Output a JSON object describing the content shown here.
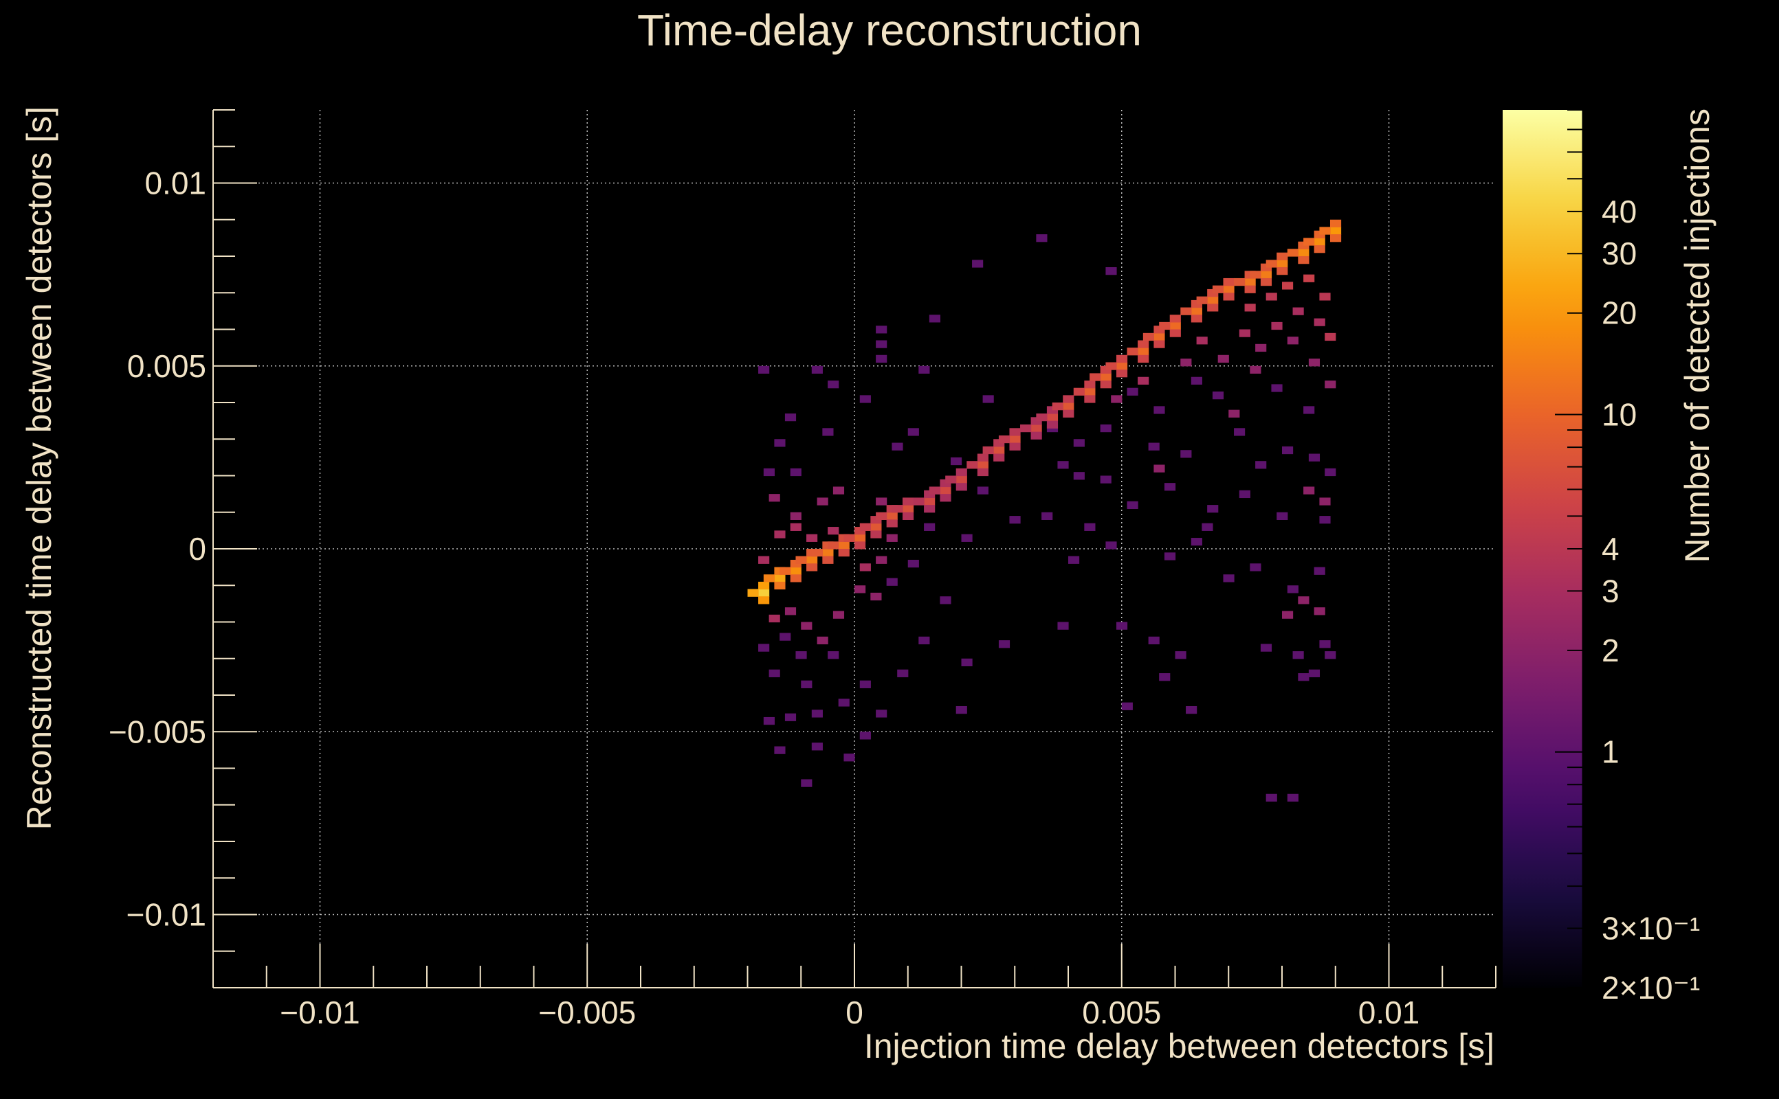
{
  "chart_data": {
    "type": "heatmap",
    "title": "Time-delay reconstruction",
    "xlabel": "Injection time delay between detectors [s]",
    "ylabel": "Reconstructed time delay between detectors [s]",
    "zlabel": "Number of detected injections",
    "xlim": [
      -0.012,
      0.012
    ],
    "ylim": [
      -0.012,
      0.012
    ],
    "zlim": [
      0.2,
      80
    ],
    "zscale": "log",
    "grid": true,
    "x_ticks": [
      {
        "value": -0.01,
        "label": "−0.01"
      },
      {
        "value": -0.005,
        "label": "−0.005"
      },
      {
        "value": 0,
        "label": "0"
      },
      {
        "value": 0.005,
        "label": "0.005"
      },
      {
        "value": 0.01,
        "label": "0.01"
      }
    ],
    "y_ticks": [
      {
        "value": 0.01,
        "label": "0.01"
      },
      {
        "value": 0.005,
        "label": "0.005"
      },
      {
        "value": 0,
        "label": "0"
      },
      {
        "value": -0.005,
        "label": "−0.005"
      },
      {
        "value": -0.01,
        "label": "−0.01"
      }
    ],
    "z_ticks": [
      {
        "value": 40,
        "label": "40"
      },
      {
        "value": 30,
        "label": "30"
      },
      {
        "value": 20,
        "label": "20"
      },
      {
        "value": 10,
        "label": "10"
      },
      {
        "value": 4,
        "label": "4"
      },
      {
        "value": 3,
        "label": "3"
      },
      {
        "value": 2,
        "label": "2"
      },
      {
        "value": 1,
        "label": "1"
      },
      {
        "value": 0.3,
        "label": "3×10⁻¹"
      },
      {
        "value": 0.2,
        "label": "2×10⁻¹"
      }
    ],
    "palette": [
      "#000004",
      "#1b0c41",
      "#4a0c6b",
      "#781c6d",
      "#a52c60",
      "#cf4446",
      "#ed6925",
      "#fb9b06",
      "#f7d13d",
      "#fcffa4"
    ],
    "ridge": [
      [
        -0.0017,
        -0.0012,
        40
      ],
      [
        -0.0014,
        -0.0008,
        25
      ],
      [
        -0.0011,
        -0.0006,
        18
      ],
      [
        -0.0008,
        -0.0003,
        15
      ],
      [
        -0.0005,
        -0.0001,
        14
      ],
      [
        -0.0002,
        0.0001,
        12
      ],
      [
        0.0001,
        0.0003,
        10
      ],
      [
        0.0004,
        0.0006,
        8
      ],
      [
        0.0007,
        0.0009,
        8
      ],
      [
        0.001,
        0.0011,
        7
      ],
      [
        0.0014,
        0.0013,
        6
      ],
      [
        0.0017,
        0.0016,
        6
      ],
      [
        0.002,
        0.0019,
        6
      ],
      [
        0.0024,
        0.0023,
        7
      ],
      [
        0.0027,
        0.0027,
        7
      ],
      [
        0.003,
        0.003,
        7
      ],
      [
        0.0034,
        0.0033,
        6
      ],
      [
        0.0037,
        0.0036,
        6
      ],
      [
        0.004,
        0.0039,
        8
      ],
      [
        0.0044,
        0.0043,
        9
      ],
      [
        0.0047,
        0.0047,
        10
      ],
      [
        0.005,
        0.005,
        10
      ],
      [
        0.0054,
        0.0054,
        11
      ],
      [
        0.0057,
        0.0058,
        11
      ],
      [
        0.006,
        0.0061,
        11
      ],
      [
        0.0064,
        0.0065,
        12
      ],
      [
        0.0067,
        0.0068,
        12
      ],
      [
        0.007,
        0.0071,
        12
      ],
      [
        0.0074,
        0.0073,
        13
      ],
      [
        0.0077,
        0.0075,
        14
      ],
      [
        0.008,
        0.0078,
        15
      ],
      [
        0.0084,
        0.0081,
        17
      ],
      [
        0.0087,
        0.0084,
        18
      ],
      [
        0.009,
        0.0087,
        20
      ]
    ],
    "scatter": [
      [
        0.0035,
        0.0085,
        1
      ],
      [
        0.0023,
        0.0078,
        1
      ],
      [
        0.0048,
        0.0076,
        1
      ],
      [
        0.0015,
        0.0063,
        1
      ],
      [
        0.0005,
        0.006,
        1
      ],
      [
        0.0005,
        0.0056,
        1
      ],
      [
        0.0005,
        0.0052,
        1
      ],
      [
        0.0013,
        0.0049,
        1
      ],
      [
        -0.0017,
        0.0049,
        1
      ],
      [
        -0.0007,
        0.0049,
        1
      ],
      [
        -0.0004,
        0.0045,
        1
      ],
      [
        0.0002,
        0.0041,
        1
      ],
      [
        0.0025,
        0.0041,
        1
      ],
      [
        -0.0012,
        0.0036,
        1
      ],
      [
        -0.0005,
        0.0032,
        1
      ],
      [
        0.0011,
        0.0032,
        1
      ],
      [
        -0.0014,
        0.0029,
        1
      ],
      [
        0.0008,
        0.0028,
        1
      ],
      [
        0.0019,
        0.0024,
        1
      ],
      [
        -0.0016,
        0.0021,
        1
      ],
      [
        0.0015,
        0.0016,
        1
      ],
      [
        0.0039,
        0.0023,
        1
      ],
      [
        0.0042,
        0.002,
        1
      ],
      [
        0.0056,
        0.0028,
        1
      ],
      [
        0.0062,
        0.0026,
        1
      ],
      [
        0.0076,
        0.0023,
        1
      ],
      [
        0.0081,
        0.0027,
        1
      ],
      [
        0.0086,
        0.0025,
        1
      ],
      [
        0.0089,
        0.0021,
        1
      ],
      [
        0.0052,
        0.0012,
        1
      ],
      [
        0.0067,
        0.0011,
        1
      ],
      [
        0.0073,
        0.0015,
        1
      ],
      [
        0.008,
        0.0009,
        1
      ],
      [
        0.0088,
        0.0008,
        1
      ],
      [
        0.0041,
        -0.0003,
        1
      ],
      [
        0.0048,
        0.0001,
        1
      ],
      [
        0.0059,
        -0.0002,
        1
      ],
      [
        0.0064,
        0.0002,
        1
      ],
      [
        0.007,
        -0.0008,
        1
      ],
      [
        0.0082,
        -0.0011,
        1
      ],
      [
        0.0087,
        -0.0006,
        1
      ],
      [
        0.0039,
        -0.0021,
        1
      ],
      [
        0.005,
        -0.0021,
        1
      ],
      [
        0.0056,
        -0.0025,
        1
      ],
      [
        0.0061,
        -0.0029,
        1
      ],
      [
        0.0077,
        -0.0027,
        1
      ],
      [
        0.0083,
        -0.0029,
        1
      ],
      [
        0.0086,
        -0.0034,
        1
      ],
      [
        0.0089,
        -0.0029,
        1
      ],
      [
        0.0028,
        -0.0026,
        1
      ],
      [
        0.0021,
        -0.0031,
        1
      ],
      [
        0.0013,
        -0.0025,
        1
      ],
      [
        0.0009,
        -0.0034,
        1
      ],
      [
        0.0002,
        -0.0037,
        1
      ],
      [
        -0.0004,
        -0.0029,
        1
      ],
      [
        -0.0009,
        -0.0037,
        1
      ],
      [
        -0.0015,
        -0.0034,
        1
      ],
      [
        -0.0016,
        -0.0047,
        1
      ],
      [
        -0.0012,
        -0.0046,
        1
      ],
      [
        -0.0007,
        -0.0045,
        1
      ],
      [
        -0.0002,
        -0.0042,
        1
      ],
      [
        0.0005,
        -0.0045,
        1
      ],
      [
        0.002,
        -0.0044,
        1
      ],
      [
        -0.0014,
        -0.0055,
        1
      ],
      [
        -0.0007,
        -0.0054,
        1
      ],
      [
        0.0002,
        -0.0051,
        1
      ],
      [
        -0.0001,
        -0.0057,
        1
      ],
      [
        -0.0009,
        -0.0064,
        1
      ],
      [
        0.0051,
        -0.0043,
        1
      ],
      [
        0.0058,
        -0.0035,
        1
      ],
      [
        0.0063,
        -0.0044,
        1
      ],
      [
        0.0078,
        -0.0068,
        1
      ],
      [
        0.0082,
        -0.0068,
        1
      ],
      [
        0.0084,
        -0.0035,
        1
      ],
      [
        0.0088,
        -0.0026,
        1
      ],
      [
        0.0075,
        -0.0005,
        1
      ],
      [
        0.0066,
        0.0006,
        1
      ],
      [
        0.0059,
        0.0017,
        1
      ],
      [
        0.0047,
        0.0019,
        1
      ],
      [
        0.0044,
        0.0006,
        1
      ],
      [
        0.0036,
        0.0009,
        1
      ],
      [
        0.003,
        0.0008,
        1
      ],
      [
        0.0024,
        0.0016,
        1
      ],
      [
        0.0021,
        0.0003,
        1
      ],
      [
        0.0014,
        0.0006,
        1
      ],
      [
        0.0011,
        -0.0004,
        1
      ],
      [
        0.0007,
        -0.0009,
        1
      ],
      [
        0.0017,
        -0.0014,
        1
      ],
      [
        -0.0011,
        0.0021,
        1
      ],
      [
        -0.0017,
        -0.0027,
        1
      ],
      [
        -0.0013,
        -0.0024,
        1
      ],
      [
        -0.001,
        -0.0029,
        1
      ],
      [
        0.0079,
        0.0044,
        1
      ],
      [
        0.0085,
        0.0038,
        1
      ],
      [
        0.0072,
        0.0032,
        1
      ],
      [
        0.0068,
        0.0042,
        1
      ],
      [
        0.0064,
        0.0046,
        1
      ],
      [
        0.0057,
        0.0038,
        1
      ],
      [
        0.0052,
        0.0043,
        1
      ],
      [
        0.0047,
        0.0033,
        1
      ],
      [
        0.0042,
        0.0029,
        1
      ],
      [
        0.0037,
        0.0033,
        1
      ],
      [
        0.0082,
        0.0057,
        2
      ],
      [
        0.0086,
        0.0051,
        2
      ],
      [
        0.0089,
        0.0045,
        2
      ],
      [
        0.0076,
        0.0055,
        2
      ],
      [
        0.0088,
        0.0013,
        2
      ],
      [
        0.0085,
        0.0016,
        2
      ],
      [
        0.0087,
        -0.0017,
        2
      ],
      [
        0.0084,
        -0.0014,
        2
      ],
      [
        0.0081,
        -0.0018,
        2
      ],
      [
        -0.0015,
        0.0014,
        2
      ],
      [
        -0.0011,
        0.0009,
        2
      ],
      [
        -0.0006,
        0.0013,
        2
      ],
      [
        -0.0003,
        0.0016,
        2
      ],
      [
        0.0005,
        0.0013,
        2
      ],
      [
        -0.0015,
        -0.0019,
        3
      ],
      [
        -0.0012,
        -0.0017,
        2
      ],
      [
        -0.0009,
        -0.0021,
        2
      ],
      [
        -0.0006,
        -0.0025,
        2
      ],
      [
        -0.0003,
        -0.0018,
        2
      ],
      [
        0.0001,
        -0.0011,
        2
      ],
      [
        0.0004,
        -0.0013,
        2
      ],
      [
        -0.0017,
        -0.0003,
        3
      ],
      [
        -0.0014,
        0.0004,
        3
      ],
      [
        -0.0011,
        0.0006,
        3
      ],
      [
        -0.0008,
        0.0003,
        3
      ],
      [
        -0.0004,
        0.0005,
        3
      ],
      [
        0.0007,
        0.0003,
        2
      ],
      [
        0.0002,
        -0.0005,
        3
      ],
      [
        0.0005,
        -0.0003,
        2
      ],
      [
        0.0057,
        0.0022,
        2
      ],
      [
        0.0071,
        0.0037,
        2
      ],
      [
        0.0075,
        0.0049,
        2
      ],
      [
        0.0079,
        0.0061,
        3
      ],
      [
        0.0083,
        0.0065,
        3
      ],
      [
        0.0087,
        0.0062,
        3
      ],
      [
        0.0089,
        0.0058,
        4
      ],
      [
        0.0073,
        0.0059,
        3
      ],
      [
        0.0069,
        0.0052,
        2
      ],
      [
        0.0062,
        0.0051,
        2
      ],
      [
        0.0081,
        0.0072,
        5
      ],
      [
        0.0085,
        0.0074,
        5
      ],
      [
        0.0088,
        0.0069,
        4
      ],
      [
        0.0074,
        0.0066,
        4
      ],
      [
        0.0078,
        0.0069,
        4
      ],
      [
        0.0065,
        0.0057,
        3
      ],
      [
        0.0054,
        0.0046,
        3
      ],
      [
        0.0049,
        0.0041,
        2
      ]
    ]
  }
}
